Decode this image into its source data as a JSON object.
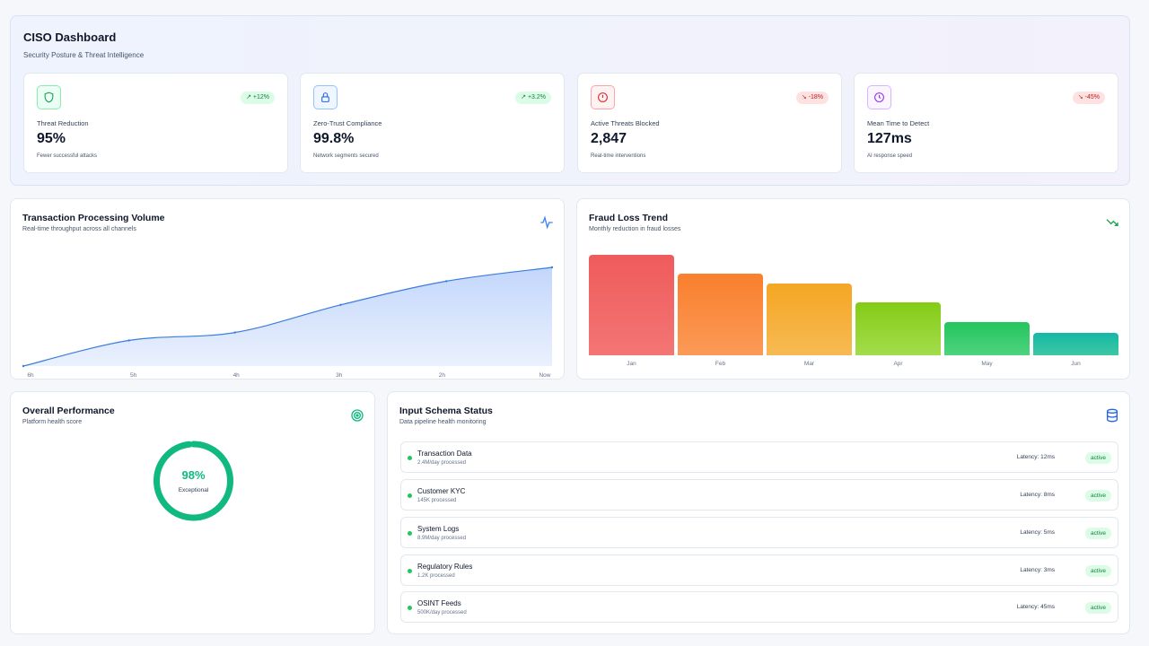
{
  "header": {
    "title": "CISO Dashboard",
    "subtitle": "Security Posture & Threat Intelligence"
  },
  "kpis": [
    {
      "label": "Threat Reduction",
      "value": "95%",
      "note": "Fewer successful attacks",
      "badge": "↗ +12%",
      "icon": "shield-icon",
      "trend": "up"
    },
    {
      "label": "Zero-Trust Compliance",
      "value": "99.8%",
      "note": "Network segments secured",
      "badge": "↗ +3.2%",
      "icon": "lock-icon",
      "trend": "up"
    },
    {
      "label": "Active Threats Blocked",
      "value": "2,847",
      "note": "Real-time interventions",
      "badge": "↘ -18%",
      "icon": "alert-circle-icon",
      "trend": "down"
    },
    {
      "label": "Mean Time to Detect",
      "value": "127ms",
      "note": "AI response speed",
      "badge": "↘ -45%",
      "icon": "clock-icon",
      "trend": "down"
    }
  ],
  "transactions": {
    "title": "Transaction Processing Volume",
    "subtitle": "Real-time throughput across all channels",
    "icon": "activity-icon",
    "chart_data": {
      "type": "area",
      "x": [
        "6h",
        "5h",
        "4h",
        "3h",
        "2h",
        "Now"
      ],
      "values": [
        0,
        26,
        34,
        62,
        86,
        100
      ],
      "title": "",
      "xlabel": "",
      "ylabel": "",
      "grid": false
    }
  },
  "fraud": {
    "title": "Fraud Loss Trend",
    "subtitle": "Monthly reduction in fraud losses",
    "icon": "trending-down-icon",
    "chart_data": {
      "type": "bar",
      "categories": [
        "Jan",
        "Feb",
        "Mar",
        "Apr",
        "May",
        "Jun"
      ],
      "values": [
        100,
        81,
        71,
        53,
        33,
        22
      ],
      "colors": [
        [
          "#ef5b5b",
          "#f47575"
        ],
        [
          "#f97f2d",
          "#fb9a57"
        ],
        [
          "#f5a623",
          "#f7ba53"
        ],
        [
          "#84cc16",
          "#a3dc4c"
        ],
        [
          "#22c55e",
          "#4fd37f"
        ],
        [
          "#14b8a6",
          "#3ec7a3"
        ]
      ],
      "title": "",
      "grid": false
    }
  },
  "performance": {
    "title": "Overall Performance",
    "subtitle": "Platform health score",
    "icon": "target-icon",
    "score": 98,
    "score_label": "98%",
    "rating": "Exceptional",
    "color": "#10b981"
  },
  "schema": {
    "title": "Input Schema Status",
    "subtitle": "Data pipeline health monitoring",
    "icon": "database-icon",
    "rows": [
      {
        "name": "Transaction Data",
        "meta": "2.4M/day processed",
        "latency": "Latency: 12ms",
        "status": "active"
      },
      {
        "name": "Customer KYC",
        "meta": "145K processed",
        "latency": "Latency: 8ms",
        "status": "active"
      },
      {
        "name": "System Logs",
        "meta": "8.9M/day processed",
        "latency": "Latency: 5ms",
        "status": "active"
      },
      {
        "name": "Regulatory Rules",
        "meta": "1.2K processed",
        "latency": "Latency: 3ms",
        "status": "active"
      },
      {
        "name": "OSINT Feeds",
        "meta": "500K/day processed",
        "latency": "Latency: 45ms",
        "status": "active"
      }
    ]
  }
}
